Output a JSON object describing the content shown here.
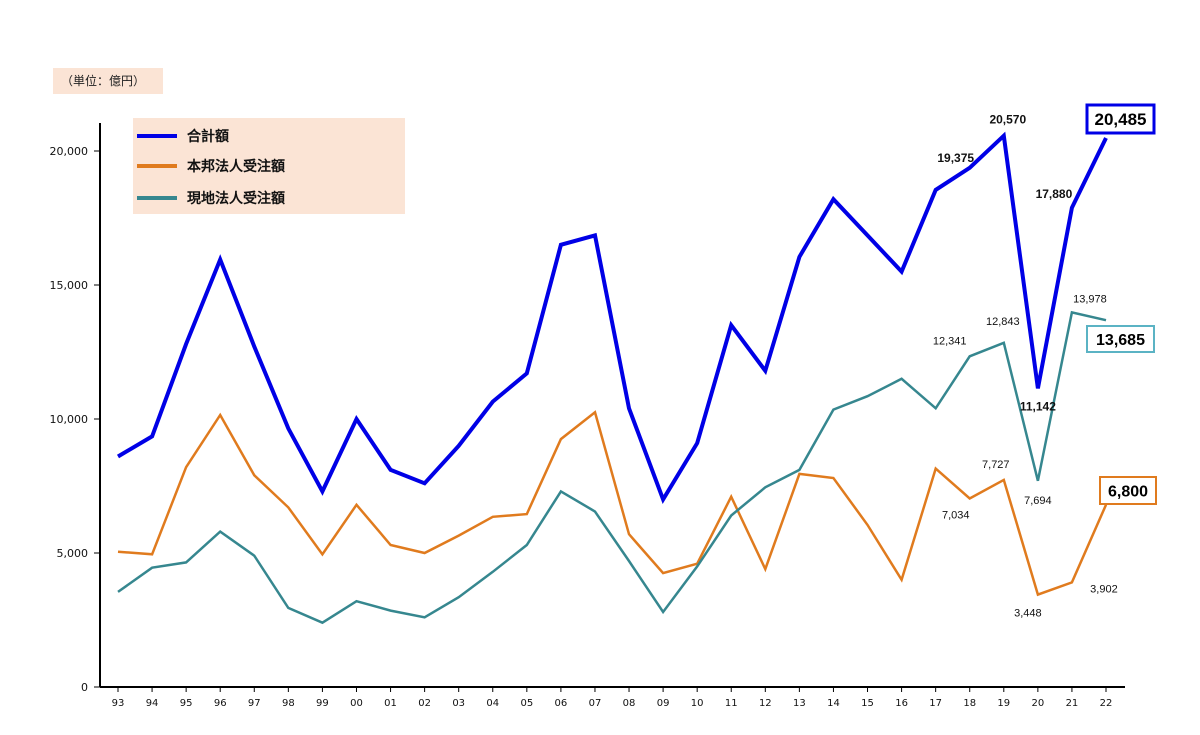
{
  "unit_label": "（単位：億円）",
  "colors": {
    "total": "#0000e6",
    "domestic": "#e07b1e",
    "local": "#36878f",
    "axis": "#000000"
  },
  "chart_data": {
    "type": "line",
    "categories": [
      "93",
      "94",
      "95",
      "96",
      "97",
      "98",
      "99",
      "00",
      "01",
      "02",
      "03",
      "04",
      "05",
      "06",
      "07",
      "08",
      "09",
      "10",
      "11",
      "12",
      "13",
      "14",
      "15",
      "16",
      "17",
      "18",
      "19",
      "20",
      "21",
      "22"
    ],
    "ylim": [
      0,
      21000
    ],
    "yticks": [
      0,
      5000,
      10000,
      15000,
      20000
    ],
    "ytick_labels": [
      "0",
      "5,000",
      "10,000",
      "15,000",
      "20,000"
    ],
    "grid": false,
    "legend_position": "top-left",
    "series": [
      {
        "name": "合計額",
        "key": "total",
        "values": [
          8600,
          9350,
          12800,
          15950,
          12700,
          9650,
          7300,
          10000,
          8100,
          7600,
          9000,
          10650,
          11700,
          16500,
          16850,
          10400,
          7000,
          9100,
          13500,
          11800,
          16050,
          18200,
          16850,
          15500,
          18550,
          19375,
          20570,
          11142,
          17880,
          20485
        ]
      },
      {
        "name": "本邦法人受注額",
        "key": "domestic",
        "values": [
          5050,
          4950,
          8200,
          10150,
          7900,
          6700,
          4950,
          6800,
          5300,
          5000,
          5650,
          6350,
          6450,
          9250,
          10250,
          5700,
          4250,
          4600,
          7100,
          4400,
          7950,
          7800,
          6050,
          4000,
          8150,
          7034,
          7727,
          3448,
          3902,
          6800
        ]
      },
      {
        "name": "現地法人受注額",
        "key": "local",
        "values": [
          3550,
          4450,
          4650,
          5800,
          4900,
          2950,
          2400,
          3200,
          2850,
          2600,
          3350,
          4300,
          5300,
          7300,
          6550,
          4700,
          2800,
          4500,
          6400,
          7450,
          8100,
          10350,
          10850,
          11500,
          10400,
          12341,
          12843,
          7694,
          13978,
          13685
        ]
      }
    ],
    "annotations": [
      {
        "series": "total",
        "index": 25,
        "text": "19,375",
        "style": "bold"
      },
      {
        "series": "total",
        "index": 26,
        "text": "20,570",
        "style": "bold"
      },
      {
        "series": "total",
        "index": 27,
        "text": "11,142",
        "style": "bold"
      },
      {
        "series": "total",
        "index": 28,
        "text": "17,880",
        "style": "bold"
      },
      {
        "series": "total",
        "index": 29,
        "text": "20,485",
        "style": "boxed"
      },
      {
        "series": "local",
        "index": 25,
        "text": "12,341",
        "style": "normal"
      },
      {
        "series": "local",
        "index": 26,
        "text": "12,843",
        "style": "normal"
      },
      {
        "series": "local",
        "index": 27,
        "text": "7,694",
        "style": "normal"
      },
      {
        "series": "local",
        "index": 28,
        "text": "13,978",
        "style": "normal"
      },
      {
        "series": "local",
        "index": 29,
        "text": "13,685",
        "style": "boxed"
      },
      {
        "series": "domestic",
        "index": 25,
        "text": "7,034",
        "style": "normal"
      },
      {
        "series": "domestic",
        "index": 26,
        "text": "7,727",
        "style": "normal"
      },
      {
        "series": "domestic",
        "index": 27,
        "text": "3,448",
        "style": "normal"
      },
      {
        "series": "domestic",
        "index": 28,
        "text": "3,902",
        "style": "normal"
      },
      {
        "series": "domestic",
        "index": 29,
        "text": "6,800",
        "style": "boxed"
      }
    ]
  }
}
